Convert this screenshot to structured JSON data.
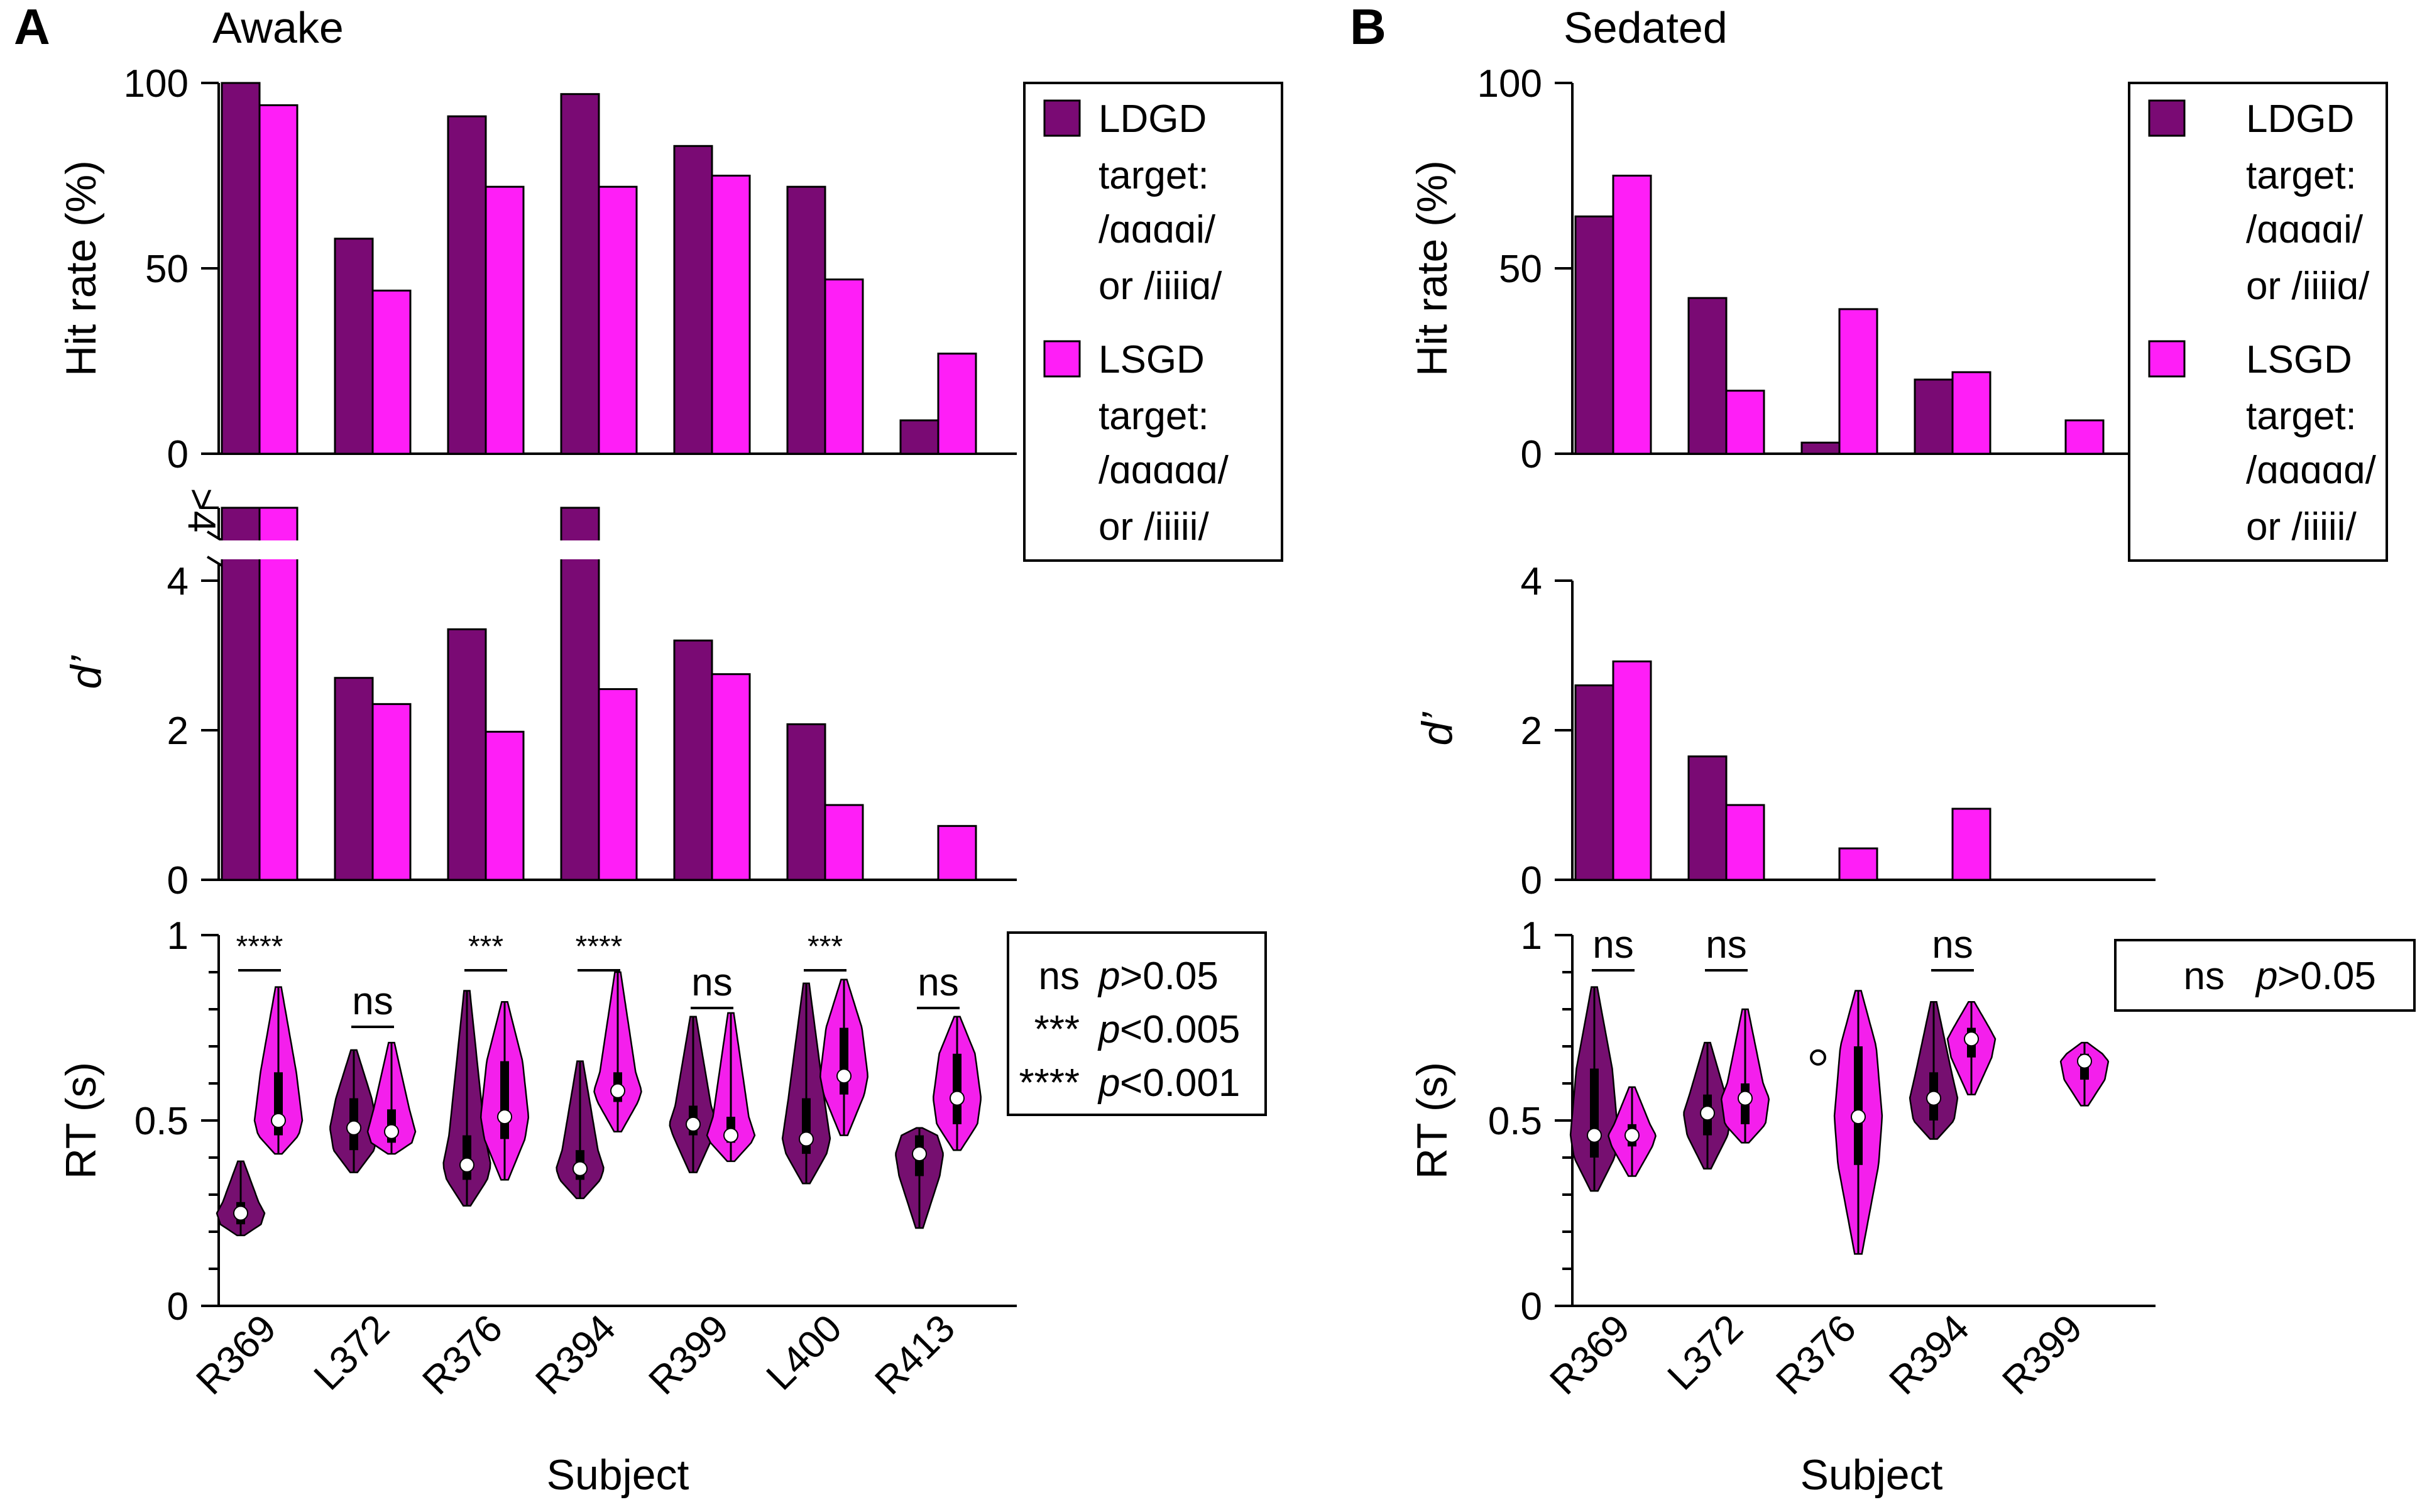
{
  "colors": {
    "ldgd": "#7a0a74",
    "lsgd": "#ff1ef7",
    "violin_ldgd": "#760f70",
    "violin_lsgd": "#f41fec"
  },
  "panels": [
    {
      "id": "A",
      "letter": "A",
      "title": "Awake",
      "subjects": [
        "R369",
        "L372",
        "R376",
        "R394",
        "R399",
        "L400",
        "R413"
      ],
      "xlabel": "Subject",
      "legend": {
        "ldgd_title": "LDGD",
        "ldgd_line1": "target:",
        "ldgd_line2": "/ɑɑɑɑi/",
        "ldgd_line3": "or /iiiiɑ/",
        "lsgd_title": "LSGD",
        "lsgd_line1": "target:",
        "lsgd_line2": "/ɑɑɑɑɑ/",
        "lsgd_line3": "or /iiiii/"
      },
      "sig_legend": [
        {
          "sym": "ns",
          "p": "p",
          "rel": ">0.05"
        },
        {
          "sym": "***",
          "p": "p",
          "rel": "<0.005"
        },
        {
          "sym": "****",
          "p": "p",
          "rel": "<0.001"
        }
      ]
    },
    {
      "id": "B",
      "letter": "B",
      "title": "Sedated",
      "subjects": [
        "R369",
        "L372",
        "R376",
        "R394",
        "R399"
      ],
      "xlabel": "Subject",
      "legend": {
        "ldgd_title": "LDGD",
        "ldgd_line1": "target:",
        "ldgd_line2": "/ɑɑɑɑi/",
        "ldgd_line3": "or /iiiiɑ/",
        "lsgd_title": "LSGD",
        "lsgd_line1": "target:",
        "lsgd_line2": "/ɑɑɑɑɑ/",
        "lsgd_line3": "or /iiiii/"
      },
      "sig_legend": [
        {
          "sym": "ns",
          "p": "p",
          "rel": ">0.05"
        }
      ]
    }
  ],
  "chart_data": [
    {
      "type": "bar",
      "panel": "A",
      "title": "Awake",
      "ylabel": "Hit rate (%)",
      "ylim": [
        0,
        100
      ],
      "yticks": [
        "0",
        "50",
        "100"
      ],
      "categories": [
        "R369",
        "L372",
        "R376",
        "R394",
        "R399",
        "L400",
        "R413"
      ],
      "series": [
        {
          "name": "LDGD",
          "values": [
            100,
            58,
            91,
            97,
            83,
            72,
            9
          ]
        },
        {
          "name": "LSGD",
          "values": [
            94,
            44,
            72,
            72,
            75,
            47,
            27
          ]
        }
      ]
    },
    {
      "type": "bar",
      "panel": "A",
      "ylabel": "d’",
      "ylim": [
        0,
        4
      ],
      "break_label": ">4",
      "yticks": [
        "0",
        "2",
        "4"
      ],
      "categories": [
        "R369",
        "L372",
        "R376",
        "R394",
        "R399",
        "L400",
        "R413"
      ],
      "series": [
        {
          "name": "LDGD",
          "values": [
            ">4",
            2.7,
            3.35,
            ">4",
            3.2,
            2.08,
            null
          ]
        },
        {
          "name": "LSGD",
          "values": [
            ">4",
            2.35,
            1.98,
            2.55,
            2.75,
            1.0,
            0.72
          ]
        }
      ]
    },
    {
      "type": "violin",
      "panel": "A",
      "ylabel": "RT (s)",
      "ylim": [
        0,
        1
      ],
      "yticks": [
        "0",
        "0.5",
        "1"
      ],
      "xlabel": "Subject",
      "categories": [
        "R369",
        "L372",
        "R376",
        "R394",
        "R399",
        "L400",
        "R413"
      ],
      "significance": [
        "****",
        "ns",
        "***",
        "****",
        "ns",
        "***",
        "ns"
      ],
      "series": [
        {
          "name": "LDGD",
          "groups": [
            {
              "min": 0.19,
              "q1": 0.22,
              "median": 0.25,
              "q3": 0.28,
              "max": 0.39
            },
            {
              "min": 0.36,
              "q1": 0.42,
              "median": 0.48,
              "q3": 0.56,
              "max": 0.69
            },
            {
              "min": 0.27,
              "q1": 0.34,
              "median": 0.38,
              "q3": 0.46,
              "max": 0.85
            },
            {
              "min": 0.29,
              "q1": 0.34,
              "median": 0.37,
              "q3": 0.42,
              "max": 0.66
            },
            {
              "min": 0.36,
              "q1": 0.46,
              "median": 0.49,
              "q3": 0.54,
              "max": 0.78
            },
            {
              "min": 0.33,
              "q1": 0.41,
              "median": 0.45,
              "q3": 0.56,
              "max": 0.87
            },
            {
              "min": 0.21,
              "q1": 0.35,
              "median": 0.41,
              "q3": 0.46,
              "max": 0.48
            }
          ]
        },
        {
          "name": "LSGD",
          "groups": [
            {
              "min": 0.41,
              "q1": 0.46,
              "median": 0.5,
              "q3": 0.63,
              "max": 0.86
            },
            {
              "min": 0.41,
              "q1": 0.44,
              "median": 0.47,
              "q3": 0.53,
              "max": 0.71
            },
            {
              "min": 0.34,
              "q1": 0.45,
              "median": 0.51,
              "q3": 0.66,
              "max": 0.82
            },
            {
              "min": 0.47,
              "q1": 0.55,
              "median": 0.58,
              "q3": 0.63,
              "max": 0.9
            },
            {
              "min": 0.39,
              "q1": 0.44,
              "median": 0.46,
              "q3": 0.51,
              "max": 0.79
            },
            {
              "min": 0.46,
              "q1": 0.57,
              "median": 0.62,
              "q3": 0.75,
              "max": 0.88
            },
            {
              "min": 0.42,
              "q1": 0.49,
              "median": 0.56,
              "q3": 0.68,
              "max": 0.78
            }
          ]
        }
      ]
    },
    {
      "type": "bar",
      "panel": "B",
      "title": "Sedated",
      "ylabel": "Hit rate (%)",
      "ylim": [
        0,
        100
      ],
      "yticks": [
        "0",
        "50",
        "100"
      ],
      "categories": [
        "R369",
        "L372",
        "R376",
        "R394",
        "R399"
      ],
      "series": [
        {
          "name": "LDGD",
          "values": [
            64,
            42,
            3,
            20,
            null
          ]
        },
        {
          "name": "LSGD",
          "values": [
            75,
            17,
            39,
            22,
            9
          ]
        }
      ]
    },
    {
      "type": "bar",
      "panel": "B",
      "ylabel": "d’",
      "ylim": [
        0,
        4
      ],
      "yticks": [
        "0",
        "2",
        "4"
      ],
      "categories": [
        "R369",
        "L372",
        "R376",
        "R394",
        "R399"
      ],
      "series": [
        {
          "name": "LDGD",
          "values": [
            2.6,
            1.65,
            null,
            null,
            null
          ]
        },
        {
          "name": "LSGD",
          "values": [
            2.92,
            1.0,
            0.42,
            0.95,
            null
          ]
        }
      ]
    },
    {
      "type": "violin",
      "panel": "B",
      "ylabel": "RT (s)",
      "ylim": [
        0,
        1
      ],
      "yticks": [
        "0",
        "0.5",
        "1"
      ],
      "xlabel": "Subject",
      "categories": [
        "R369",
        "L372",
        "R376",
        "R394",
        "R399"
      ],
      "significance": [
        "ns",
        "ns",
        "",
        "ns",
        ""
      ],
      "series": [
        {
          "name": "LDGD",
          "groups": [
            {
              "min": 0.31,
              "q1": 0.4,
              "median": 0.46,
              "q3": 0.64,
              "max": 0.86
            },
            {
              "min": 0.37,
              "q1": 0.46,
              "median": 0.52,
              "q3": 0.57,
              "max": 0.71
            },
            {
              "outlier": 0.67
            },
            {
              "min": 0.45,
              "q1": 0.5,
              "median": 0.56,
              "q3": 0.63,
              "max": 0.82
            },
            null
          ]
        },
        {
          "name": "LSGD",
          "groups": [
            {
              "min": 0.35,
              "q1": 0.43,
              "median": 0.46,
              "q3": 0.49,
              "max": 0.59
            },
            {
              "min": 0.44,
              "q1": 0.49,
              "median": 0.56,
              "q3": 0.6,
              "max": 0.8
            },
            {
              "min": 0.14,
              "q1": 0.38,
              "median": 0.51,
              "q3": 0.7,
              "max": 0.85
            },
            {
              "min": 0.57,
              "q1": 0.67,
              "median": 0.72,
              "q3": 0.75,
              "max": 0.82
            },
            {
              "min": 0.54,
              "q1": 0.61,
              "median": 0.66,
              "q3": 0.68,
              "max": 0.71
            }
          ]
        }
      ]
    }
  ]
}
